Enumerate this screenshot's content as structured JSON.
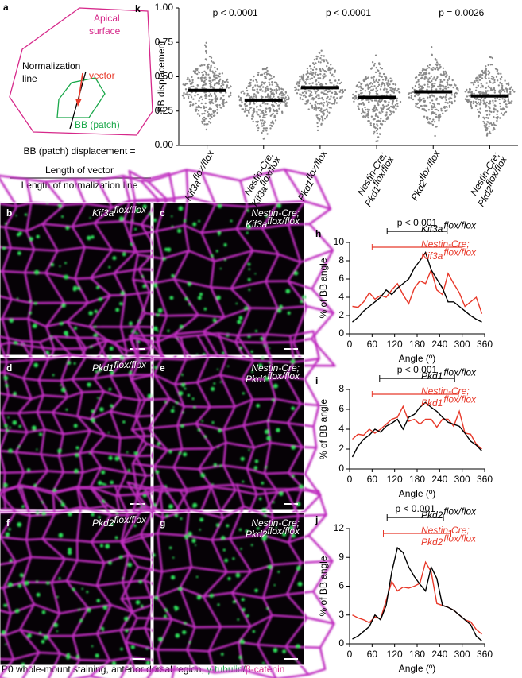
{
  "schematic": {
    "panel": "a",
    "apical": [
      "Apical",
      "surface"
    ],
    "normalization": [
      "Normalization",
      "line"
    ],
    "vector": "vector",
    "patch": "BB (patch)",
    "formula": "BB (patch) displacement =",
    "numerator": "Length of vector",
    "denominator": "Length of normalization line"
  },
  "images": [
    {
      "panel": "b",
      "label": "Kif3a",
      "sup": "flox/flox"
    },
    {
      "panel": "c",
      "label": "Nestin-Cre; Kif3a",
      "sup": "flox/flox"
    },
    {
      "panel": "d",
      "label": "Pkd1",
      "sup": "flox/flox"
    },
    {
      "panel": "e",
      "label": "Nestin-Cre; Pkd1",
      "sup": "flox/flox"
    },
    {
      "panel": "f",
      "label": "Pkd2",
      "sup": "flox/flox"
    },
    {
      "panel": "g",
      "label": "Nestin-Cre; Pkd2",
      "sup": "flox/flox"
    }
  ],
  "caption": [
    "P0 whole-mount staining, anterior dorsal region, ",
    "γ-tubulin",
    "/",
    "β-catenin"
  ],
  "chart_data": [
    {
      "type": "swarm",
      "panel": "k",
      "y_label": "BB displacement",
      "categories": [
        "Kif3a",
        "Nestin-Cre; Kif3a",
        "Pkd1",
        "Nestin-Cre; Pkd1",
        "Pkd2",
        "Nestin-Cre; Pkd2"
      ],
      "category_sup": [
        "flox/flox",
        "flox/flox",
        "flox/flox",
        "flox/flox",
        "flox/flox",
        "flox/flox"
      ],
      "values": [
        0.4,
        0.33,
        0.42,
        0.35,
        0.39,
        0.36
      ],
      "annotations": [
        "p < 0.0001",
        "p < 0.0001",
        "p = 0.0026"
      ],
      "ylim": [
        0,
        1
      ],
      "yticks": [
        {
          "value": 0,
          "label": "0.00"
        },
        {
          "value": 0.25,
          "label": "0.25"
        },
        {
          "value": 0.5,
          "label": "0.50"
        },
        {
          "value": 0.75,
          "label": "0.75"
        },
        {
          "value": 1,
          "label": "1.00"
        }
      ]
    },
    {
      "type": "line",
      "panel": "h",
      "y_label": "% of BB angle",
      "x_label": "Angle (º)",
      "x": [
        7.5,
        22.5,
        37.5,
        52.5,
        67.5,
        82.5,
        97.5,
        112.5,
        127.5,
        142.5,
        157.5,
        172.5,
        187.5,
        202.5,
        217.5,
        232.5,
        247.5,
        262.5,
        277.5,
        292.5,
        307.5,
        322.5,
        337.5,
        352.5
      ],
      "series": [
        {
          "name": "Kif3a",
          "name_sup": "flox/flox",
          "color": "#000000",
          "values": [
            1.3,
            1.8,
            2.5,
            3.0,
            3.5,
            4.0,
            4.8,
            4.3,
            5.0,
            5.5,
            6.0,
            7.2,
            8.0,
            8.9,
            7.0,
            6.0,
            5.0,
            3.5,
            3.5,
            3.0,
            2.5,
            2.0,
            1.6,
            1.3
          ]
        },
        {
          "name": "Nestin-Cre; Kif3a",
          "name_sup": "flox/flox",
          "color": "#e8392a",
          "values": [
            3.0,
            2.9,
            3.5,
            4.5,
            3.8,
            4.2,
            4.0,
            4.8,
            5.5,
            4.3,
            3.3,
            5.0,
            5.8,
            5.5,
            7.0,
            4.8,
            4.3,
            6.6,
            5.5,
            4.5,
            3.0,
            3.5,
            4.0,
            2.2
          ]
        }
      ],
      "comparisons": [
        {
          "x0": 100,
          "x1": 260,
          "color": "#000000",
          "label": "p < 0.001"
        },
        {
          "x0": 60,
          "x1": 300,
          "color": "#e8392a"
        }
      ],
      "xlim": [
        0,
        360
      ],
      "xticks": [
        0,
        60,
        120,
        180,
        240,
        300,
        360
      ],
      "ylim": [
        0,
        10
      ],
      "yticks": [
        0,
        2,
        4,
        6,
        8,
        10
      ]
    },
    {
      "type": "line",
      "panel": "i",
      "y_label": "% of BB angle",
      "x_label": "Angle (º)",
      "x": [
        7.5,
        22.5,
        37.5,
        52.5,
        67.5,
        82.5,
        97.5,
        112.5,
        127.5,
        142.5,
        157.5,
        172.5,
        187.5,
        202.5,
        217.5,
        232.5,
        247.5,
        262.5,
        277.5,
        292.5,
        307.5,
        322.5,
        337.5,
        352.5
      ],
      "series": [
        {
          "name": "Pkd1",
          "name_sup": "flox/flox",
          "color": "#000000",
          "values": [
            1.2,
            2.3,
            3.0,
            3.4,
            4.0,
            3.7,
            4.3,
            4.6,
            5.0,
            4.0,
            5.2,
            5.5,
            6.2,
            6.7,
            6.2,
            5.8,
            5.2,
            4.7,
            4.5,
            4.3,
            3.6,
            2.8,
            2.4,
            1.8
          ]
        },
        {
          "name": "Nestin-Cre; Pkd1",
          "name_sup": "flox/flox",
          "color": "#e8392a",
          "values": [
            3.0,
            3.5,
            3.4,
            4.0,
            3.6,
            4.0,
            4.5,
            5.0,
            5.2,
            6.3,
            4.8,
            5.0,
            4.5,
            5.0,
            5.0,
            4.2,
            5.0,
            5.0,
            4.3,
            5.8,
            3.6,
            3.5,
            2.5,
            2.0
          ]
        }
      ],
      "comparisons": [
        {
          "x0": 80,
          "x1": 280,
          "color": "#000000",
          "label": "p < 0.001"
        },
        {
          "x0": 60,
          "x1": 290,
          "color": "#e8392a"
        }
      ],
      "xlim": [
        0,
        360
      ],
      "xticks": [
        0,
        60,
        120,
        180,
        240,
        300,
        360
      ],
      "ylim": [
        0,
        8
      ],
      "yticks": [
        0,
        2,
        4,
        6,
        8
      ]
    },
    {
      "type": "line",
      "panel": "j",
      "y_label": "% of BB angle",
      "x_label": "Angle (º)",
      "x": [
        7.5,
        22.5,
        37.5,
        52.5,
        67.5,
        82.5,
        97.5,
        112.5,
        127.5,
        142.5,
        157.5,
        172.5,
        187.5,
        202.5,
        217.5,
        232.5,
        247.5,
        262.5,
        277.5,
        292.5,
        307.5,
        322.5,
        337.5,
        352.5
      ],
      "series": [
        {
          "name": "Pkd2",
          "name_sup": "flox/flox",
          "color": "#000000",
          "values": [
            0.5,
            0.8,
            1.3,
            1.8,
            3.0,
            2.5,
            4.0,
            7.5,
            10.0,
            9.5,
            8.0,
            7.0,
            6.2,
            5.5,
            8.0,
            6.8,
            4.0,
            3.8,
            3.5,
            3.0,
            2.5,
            2.0,
            0.8,
            0.3
          ]
        },
        {
          "name": "Nestin-Cre; Pkd2",
          "name_sup": "flox/flox",
          "color": "#e8392a",
          "values": [
            3.0,
            2.7,
            2.5,
            2.2,
            2.8,
            2.6,
            4.5,
            6.5,
            5.5,
            5.9,
            5.8,
            6.0,
            6.3,
            8.5,
            7.5,
            4.2,
            4.0,
            3.8,
            3.5,
            3.0,
            2.5,
            2.3,
            1.5,
            1.0
          ]
        }
      ],
      "comparisons": [
        {
          "x0": 100,
          "x1": 250,
          "color": "#000000",
          "label": "p < 0.001"
        },
        {
          "x0": 90,
          "x1": 270,
          "color": "#e8392a"
        }
      ],
      "xlim": [
        0,
        360
      ],
      "xticks": [
        0,
        60,
        120,
        180,
        240,
        300,
        360
      ],
      "ylim": [
        0,
        12
      ],
      "yticks": [
        0,
        3,
        6,
        9,
        12
      ]
    }
  ]
}
